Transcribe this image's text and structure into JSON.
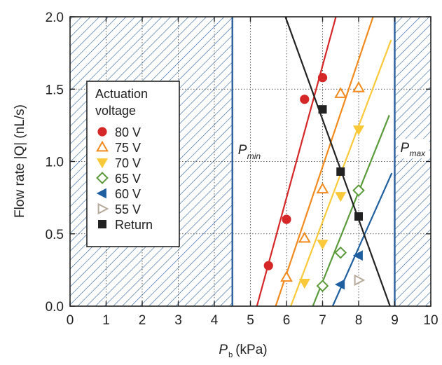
{
  "chart_data": {
    "type": "scatter",
    "xlabel": "P",
    "xlabel_subscript": "b",
    "xlabel_unit": "(kPa)",
    "ylabel": "Flow rate |Q| (nL/s)",
    "xlim": [
      0,
      10
    ],
    "ylim": [
      0,
      2.0
    ],
    "xticks": [
      "0",
      "1",
      "2",
      "3",
      "4",
      "5",
      "6",
      "7",
      "8",
      "9",
      "10"
    ],
    "yticks": [
      "0.0",
      "0.5",
      "1.0",
      "1.5",
      "2.0"
    ],
    "grid": true,
    "shaded_regions": [
      {
        "x_from": 0,
        "x_to": 4.5,
        "pattern": "diagonal hatch",
        "color": "#2b5f9e"
      },
      {
        "x_from": 9.0,
        "x_to": 10,
        "pattern": "diagonal hatch",
        "color": "#2b5f9e"
      }
    ],
    "vertical_lines": [
      {
        "x": 4.5,
        "label": "P",
        "subscript": "min",
        "color": "#2b5f9e"
      },
      {
        "x": 9.0,
        "label": "P",
        "subscript": "max",
        "color": "#2b5f9e"
      }
    ],
    "legend": {
      "title": "Actuation\nvoltage",
      "title_lines": [
        "Actuation",
        "voltage"
      ],
      "position": "left"
    },
    "series": [
      {
        "name": "80 V",
        "color": "#d62728",
        "marker": "circle",
        "x": [
          5.5,
          6.0,
          6.5,
          7.0
        ],
        "y": [
          0.28,
          0.6,
          1.43,
          1.58
        ],
        "fit": [
          [
            5.18,
            0.0
          ],
          [
            7.37,
            2.0
          ]
        ]
      },
      {
        "name": "75 V",
        "color": "#f28a1e",
        "marker": "triangle-up-open",
        "x": [
          6.0,
          6.5,
          7.0,
          7.5,
          8.0
        ],
        "y": [
          0.2,
          0.47,
          0.81,
          1.47,
          1.51
        ],
        "fit": [
          [
            5.7,
            0.0
          ],
          [
            8.4,
            2.0
          ]
        ]
      },
      {
        "name": "70 V",
        "color": "#f9c93a",
        "marker": "triangle-down",
        "x": [
          6.5,
          7.0,
          7.5,
          8.0
        ],
        "y": [
          0.16,
          0.43,
          0.76,
          1.22
        ],
        "fit": [
          [
            6.12,
            0.0
          ],
          [
            8.9,
            1.84
          ]
        ]
      },
      {
        "name": "65 V",
        "color": "#5a9a3a",
        "marker": "diamond-open",
        "x": [
          7.0,
          7.5,
          8.0
        ],
        "y": [
          0.14,
          0.37,
          0.8
        ],
        "fit": [
          [
            6.73,
            0.0
          ],
          [
            8.85,
            1.32
          ]
        ]
      },
      {
        "name": "60 V",
        "color": "#1f5fa0",
        "marker": "triangle-left",
        "x": [
          7.5,
          8.0
        ],
        "y": [
          0.15,
          0.35
        ],
        "fit": [
          [
            7.28,
            0.0
          ],
          [
            8.92,
            0.92
          ]
        ]
      },
      {
        "name": "55 V",
        "color": "#b5a99a",
        "marker": "triangle-right-open",
        "x": [
          8.0
        ],
        "y": [
          0.18
        ],
        "fit": null
      },
      {
        "name": "Return",
        "color": "#222222",
        "marker": "square",
        "x": [
          7.0,
          7.5,
          8.0
        ],
        "y": [
          1.36,
          0.93,
          0.62
        ],
        "fit": [
          [
            5.97,
            2.0
          ],
          [
            8.87,
            0.0
          ]
        ]
      }
    ]
  }
}
